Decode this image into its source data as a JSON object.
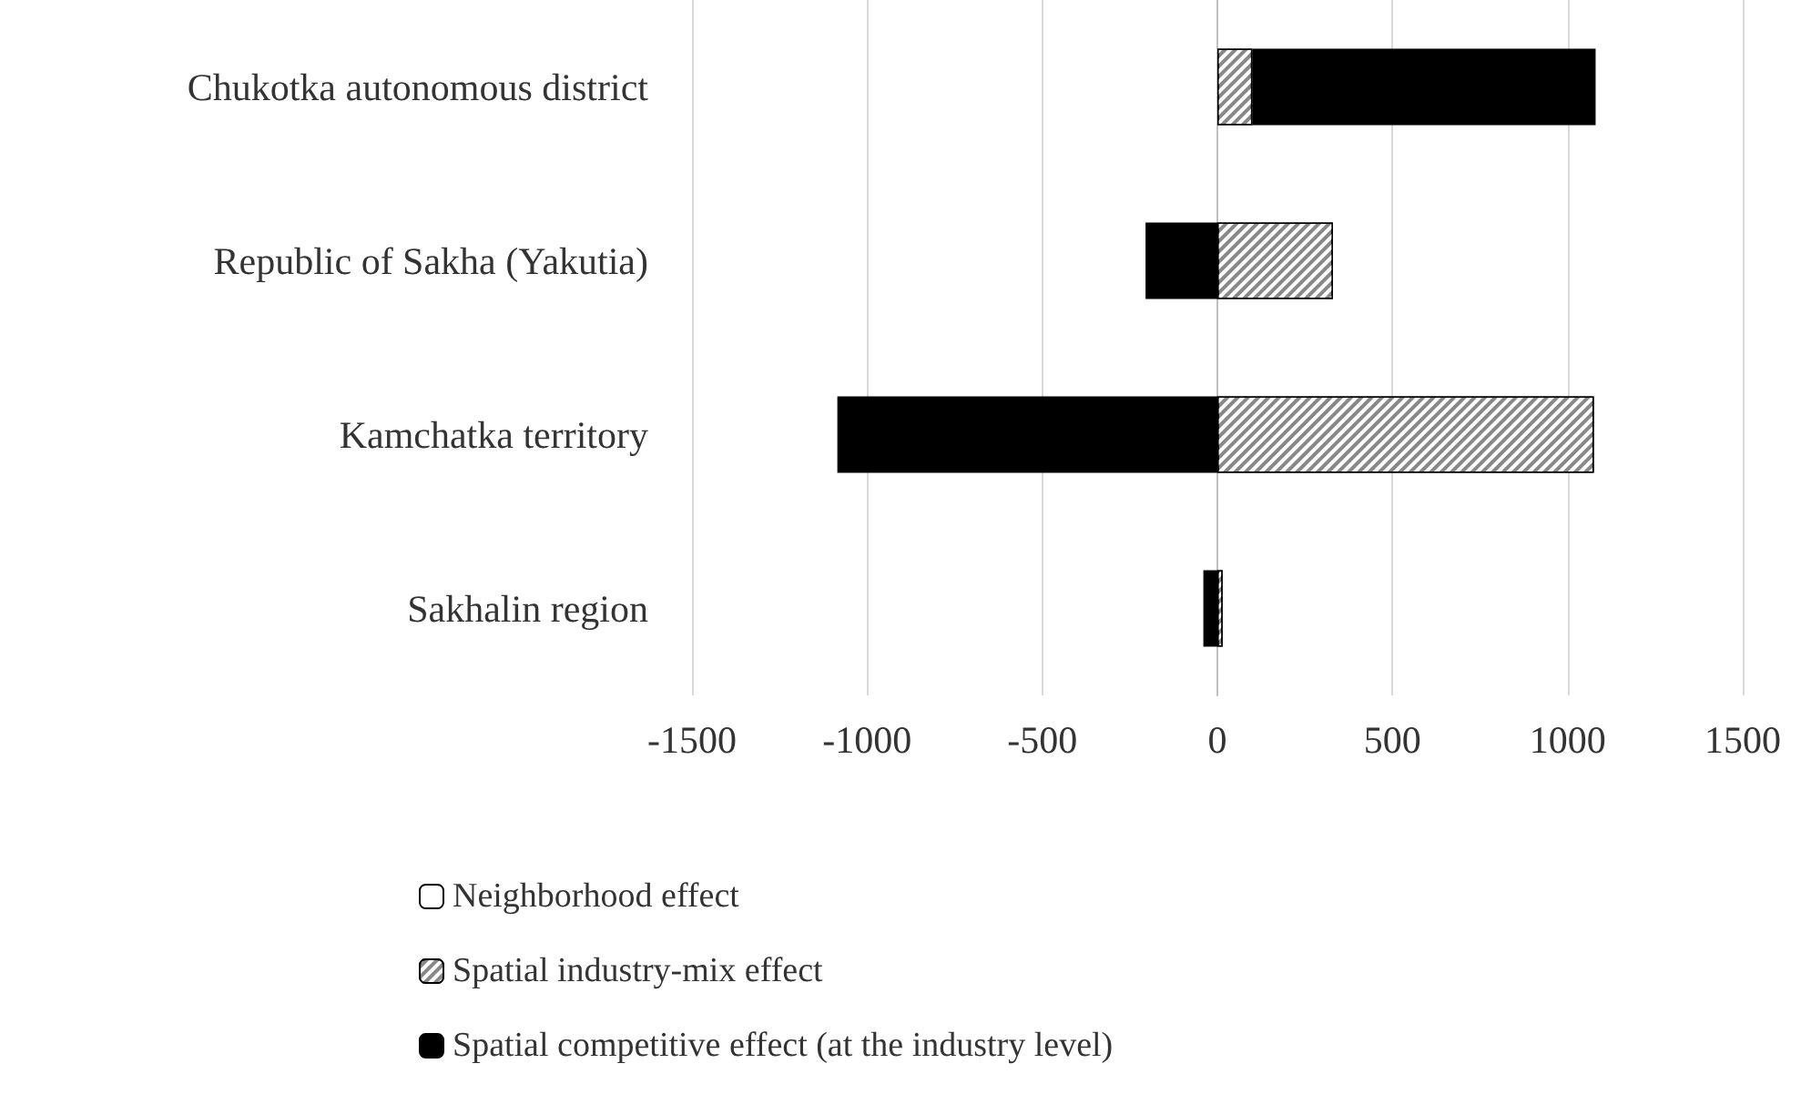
{
  "chart_data": {
    "type": "bar",
    "orientation": "horizontal",
    "stacked": true,
    "categories": [
      "Chukotka autonomous district",
      "Republic of Sakha (Yakutia)",
      "Kamchatka territory",
      "Sakhalin region"
    ],
    "series": [
      {
        "name": "Neighborhood effect",
        "color": "#ffffff",
        "values": [
          null,
          null,
          null,
          null
        ]
      },
      {
        "name": "Spatial industry-mix effect",
        "color": "#888888",
        "values": [
          100,
          330,
          1075,
          15
        ]
      },
      {
        "name": "Spatial competitive effect (at the industry level)",
        "color": "#000000",
        "values": [
          980,
          -205,
          -1085,
          -40
        ]
      }
    ],
    "xlim": [
      -1500,
      1500
    ],
    "xticks": [
      -1500,
      -1000,
      -500,
      0,
      500,
      1000,
      1500
    ],
    "grid": "x",
    "legend": "bottom"
  }
}
